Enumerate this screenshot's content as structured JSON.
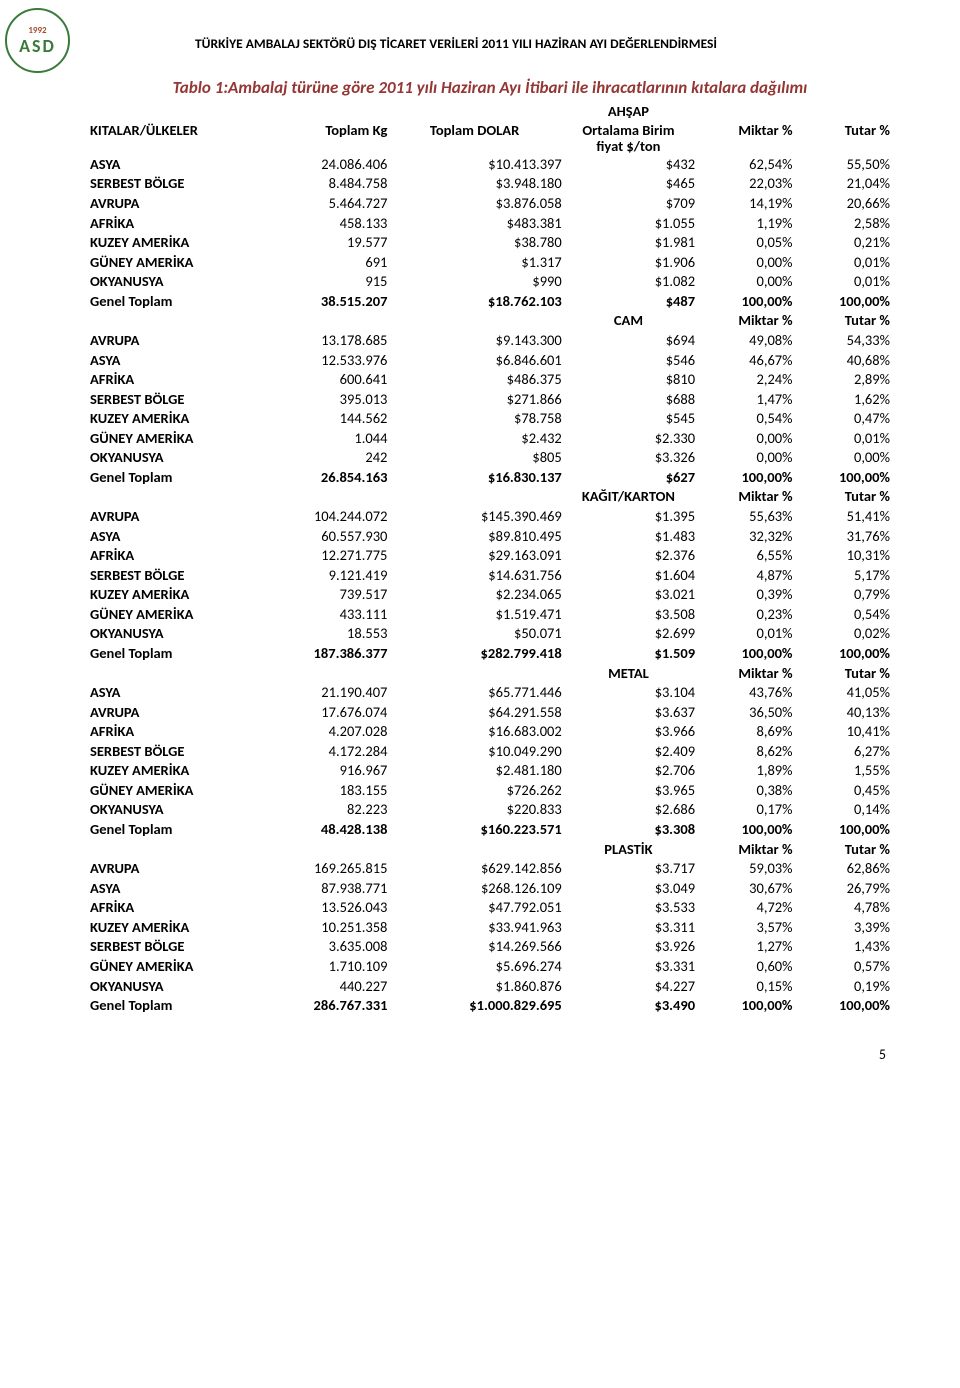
{
  "header": "TÜRKİYE AMBALAJ SEKTÖRÜ DIŞ TİCARET VERİLERİ 2011 YILI HAZİRAN AYI DEĞERLENDİRMESİ",
  "title": "Tablo 1:Ambalaj türüne göre 2011 yılı Haziran Ayı İtibari ile ihracatlarının kıtalara dağılımı",
  "logo": {
    "year": "1992",
    "text": "ASD"
  },
  "col_headers": {
    "label": "KITALAR/ÜLKELER",
    "kg": "Toplam Kg",
    "dolar": "Toplam DOLAR",
    "birim_l1": "Ortalama Birim",
    "birim_l2": "fiyat $/ton",
    "miktar": "Miktar %",
    "tutar": "Tutar %"
  },
  "sections": [
    {
      "name": "AHŞAP",
      "show_headers": true,
      "rows": [
        [
          "ASYA",
          "24.086.406",
          "$10.413.397",
          "$432",
          "62,54%",
          "55,50%"
        ],
        [
          "SERBEST BÖLGE",
          "8.484.758",
          "$3.948.180",
          "$465",
          "22,03%",
          "21,04%"
        ],
        [
          "AVRUPA",
          "5.464.727",
          "$3.876.058",
          "$709",
          "14,19%",
          "20,66%"
        ],
        [
          "AFRİKA",
          "458.133",
          "$483.381",
          "$1.055",
          "1,19%",
          "2,58%"
        ],
        [
          "KUZEY AMERİKA",
          "19.577",
          "$38.780",
          "$1.981",
          "0,05%",
          "0,21%"
        ],
        [
          "GÜNEY AMERİKA",
          "691",
          "$1.317",
          "$1.906",
          "0,00%",
          "0,01%"
        ],
        [
          "OKYANUSYA",
          "915",
          "$990",
          "$1.082",
          "0,00%",
          "0,01%"
        ]
      ],
      "total": [
        "Genel Toplam",
        "38.515.207",
        "$18.762.103",
        "$487",
        "100,00%",
        "100,00%"
      ]
    },
    {
      "name": "CAM",
      "rows": [
        [
          "AVRUPA",
          "13.178.685",
          "$9.143.300",
          "$694",
          "49,08%",
          "54,33%"
        ],
        [
          "ASYA",
          "12.533.976",
          "$6.846.601",
          "$546",
          "46,67%",
          "40,68%"
        ],
        [
          "AFRİKA",
          "600.641",
          "$486.375",
          "$810",
          "2,24%",
          "2,89%"
        ],
        [
          "SERBEST BÖLGE",
          "395.013",
          "$271.866",
          "$688",
          "1,47%",
          "1,62%"
        ],
        [
          "KUZEY AMERİKA",
          "144.562",
          "$78.758",
          "$545",
          "0,54%",
          "0,47%"
        ],
        [
          "GÜNEY AMERİKA",
          "1.044",
          "$2.432",
          "$2.330",
          "0,00%",
          "0,01%"
        ],
        [
          "OKYANUSYA",
          "242",
          "$805",
          "$3.326",
          "0,00%",
          "0,00%"
        ]
      ],
      "total": [
        "Genel Toplam",
        "26.854.163",
        "$16.830.137",
        "$627",
        "100,00%",
        "100,00%"
      ]
    },
    {
      "name": "KAĞIT/KARTON",
      "rows": [
        [
          "AVRUPA",
          "104.244.072",
          "$145.390.469",
          "$1.395",
          "55,63%",
          "51,41%"
        ],
        [
          "ASYA",
          "60.557.930",
          "$89.810.495",
          "$1.483",
          "32,32%",
          "31,76%"
        ],
        [
          "AFRİKA",
          "12.271.775",
          "$29.163.091",
          "$2.376",
          "6,55%",
          "10,31%"
        ],
        [
          "SERBEST BÖLGE",
          "9.121.419",
          "$14.631.756",
          "$1.604",
          "4,87%",
          "5,17%"
        ],
        [
          "KUZEY AMERİKA",
          "739.517",
          "$2.234.065",
          "$3.021",
          "0,39%",
          "0,79%"
        ],
        [
          "GÜNEY AMERİKA",
          "433.111",
          "$1.519.471",
          "$3.508",
          "0,23%",
          "0,54%"
        ],
        [
          "OKYANUSYA",
          "18.553",
          "$50.071",
          "$2.699",
          "0,01%",
          "0,02%"
        ]
      ],
      "total": [
        "Genel Toplam",
        "187.386.377",
        "$282.799.418",
        "$1.509",
        "100,00%",
        "100,00%"
      ]
    },
    {
      "name": "METAL",
      "rows": [
        [
          "ASYA",
          "21.190.407",
          "$65.771.446",
          "$3.104",
          "43,76%",
          "41,05%"
        ],
        [
          "AVRUPA",
          "17.676.074",
          "$64.291.558",
          "$3.637",
          "36,50%",
          "40,13%"
        ],
        [
          "AFRİKA",
          "4.207.028",
          "$16.683.002",
          "$3.966",
          "8,69%",
          "10,41%"
        ],
        [
          "SERBEST BÖLGE",
          "4.172.284",
          "$10.049.290",
          "$2.409",
          "8,62%",
          "6,27%"
        ],
        [
          "KUZEY AMERİKA",
          "916.967",
          "$2.481.180",
          "$2.706",
          "1,89%",
          "1,55%"
        ],
        [
          "GÜNEY AMERİKA",
          "183.155",
          "$726.262",
          "$3.965",
          "0,38%",
          "0,45%"
        ],
        [
          "OKYANUSYA",
          "82.223",
          "$220.833",
          "$2.686",
          "0,17%",
          "0,14%"
        ]
      ],
      "total": [
        "Genel Toplam",
        "48.428.138",
        "$160.223.571",
        "$3.308",
        "100,00%",
        "100,00%"
      ]
    },
    {
      "name": "PLASTİK",
      "rows": [
        [
          "AVRUPA",
          "169.265.815",
          "$629.142.856",
          "$3.717",
          "59,03%",
          "62,86%"
        ],
        [
          "ASYA",
          "87.938.771",
          "$268.126.109",
          "$3.049",
          "30,67%",
          "26,79%"
        ],
        [
          "AFRİKA",
          "13.526.043",
          "$47.792.051",
          "$3.533",
          "4,72%",
          "4,78%"
        ],
        [
          "KUZEY AMERİKA",
          "10.251.358",
          "$33.941.963",
          "$3.311",
          "3,57%",
          "3,39%"
        ],
        [
          "SERBEST BÖLGE",
          "3.635.008",
          "$14.269.566",
          "$3.926",
          "1,27%",
          "1,43%"
        ],
        [
          "GÜNEY AMERİKA",
          "1.710.109",
          "$5.696.274",
          "$3.331",
          "0,60%",
          "0,57%"
        ],
        [
          "OKYANUSYA",
          "440.227",
          "$1.860.876",
          "$4.227",
          "0,15%",
          "0,19%"
        ]
      ],
      "total": [
        "Genel Toplam",
        "286.767.331",
        "$1.000.829.695",
        "$3.490",
        "100,00%",
        "100,00%"
      ]
    }
  ],
  "page_number": "5"
}
